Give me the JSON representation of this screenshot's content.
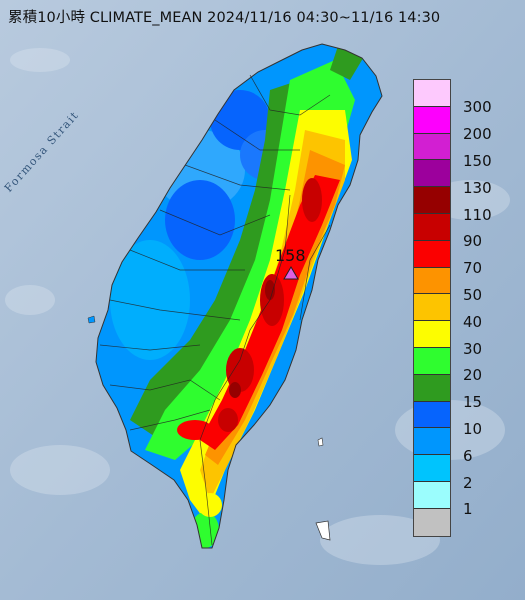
{
  "title": "累積10小時 CLIMATE_MEAN 2024/11/16 04:30~11/16 14:30",
  "strait_label": "Formosa Strait",
  "peak": {
    "value": "158",
    "marker_color": "#e060e0"
  },
  "legend": {
    "items": [
      {
        "label": "300",
        "color": "#fdc9fd"
      },
      {
        "label": "200",
        "color": "#fd00fd"
      },
      {
        "label": "150",
        "color": "#d21fd2"
      },
      {
        "label": "130",
        "color": "#9c009c"
      },
      {
        "label": "110",
        "color": "#960000"
      },
      {
        "label": "90",
        "color": "#c80000"
      },
      {
        "label": "70",
        "color": "#fb0000"
      },
      {
        "label": "50",
        "color": "#fd9300"
      },
      {
        "label": "40",
        "color": "#fdc400"
      },
      {
        "label": "30",
        "color": "#fdfd00"
      },
      {
        "label": "20",
        "color": "#2ffd2f"
      },
      {
        "label": "15",
        "color": "#2f9b1f"
      },
      {
        "label": "10",
        "color": "#0664fd"
      },
      {
        "label": "6",
        "color": "#0096fd"
      },
      {
        "label": "2",
        "color": "#00c4fd"
      },
      {
        "label": "1",
        "color": "#9bfdfd"
      },
      {
        "label": "",
        "color": "#c1c1c1"
      }
    ]
  }
}
